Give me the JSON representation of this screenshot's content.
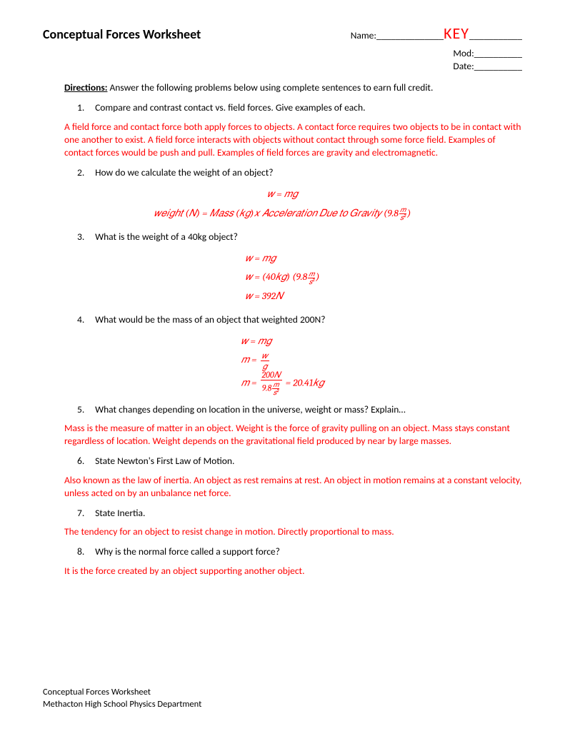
{
  "title": "Conceptual Forces Worksheet",
  "name_label": "Name:",
  "key": "KEY",
  "name_line_before": "______________",
  "name_line_after": "___________",
  "mod_label": "Mod:__________",
  "date_label": "Date:__________",
  "directions_label": "Directions:",
  "directions_text": "  Answer the following problems below using complete sentences to earn full credit.",
  "q1_num": "1.",
  "q1": "Compare and contrast contact vs. field forces.  Give examples of each.",
  "a1": "A field force and contact force both apply forces to objects.  A contact force requires two objects to be in contact with one another to exist.  A field force interacts with objects without contact through some force field.  Examples of contact forces would be push and pull.  Examples of field forces are gravity and electromagnetic.",
  "q2_num": "2.",
  "q2": "How do we calculate the weight of an object?",
  "eq2_line1": "𝑤 = 𝑚𝑔",
  "eq2_line2_a": "𝑤𝑒𝑖𝑔ℎ𝑡 (𝑁) = 𝑀𝑎𝑠𝑠 (𝑘𝑔)𝑥 𝐴𝑐𝑐𝑒𝑙𝑒𝑟𝑎𝑡𝑖𝑜𝑛 𝐷𝑢𝑒 𝑡𝑜 𝐺𝑟𝑎𝑣𝑖𝑡𝑦 (9.8",
  "eq2_line2_b": ")",
  "frac_m": "𝑚",
  "frac_s2": "𝑠²",
  "q3_num": "3.",
  "q3": "What is the weight of a 40kg object?",
  "eq3_line1": "𝑤 = 𝑚𝑔",
  "eq3_line2_a": "𝑤 = (40𝑘𝑔) (9.8",
  "eq3_line2_b": ")",
  "eq3_line3": "𝑤 = 392𝑁",
  "q4_num": "4.",
  "q4": "What would be the mass of an object that weighted 200N?",
  "eq4_line1": "𝑤 = 𝑚𝑔",
  "eq4_line2_a": "𝑚 = ",
  "eq4_frac2_num": "𝑤",
  "eq4_frac2_den": "𝑔",
  "eq4_line3_a": "𝑚 = ",
  "eq4_frac3_num": "200𝑁",
  "eq4_frac3_den_a": "9.8",
  "eq4_line3_b": " = 20.41𝑘𝑔",
  "q5_num": "5.",
  "q5": "What changes depending on location in the universe, weight or mass? Explain…",
  "a5": "Mass is the measure of matter in an object.  Weight is the force of gravity pulling on an object.  Mass stays constant regardless of location.  Weight depends on the gravitational field produced by near by large masses.",
  "q6_num": "6.",
  "q6": "State Newton's First Law of Motion.",
  "a6": "Also known as the law of inertia.  An object as rest remains at rest.  An object in motion remains at a constant velocity, unless acted on by an unbalance net force.",
  "q7_num": "7.",
  "q7": "State Inertia.",
  "a7": "The tendency for an object to resist change in motion.  Directly proportional to mass.",
  "q8_num": "8.",
  "q8": "Why is the normal force called a support force?",
  "a8": "It is the force created by an object supporting another object.",
  "footer_line1": "Conceptual Forces Worksheet",
  "footer_line2": "Methacton High School Physics Department",
  "colors": {
    "answer": "#ff0000",
    "text": "#000000",
    "bg": "#ffffff"
  }
}
